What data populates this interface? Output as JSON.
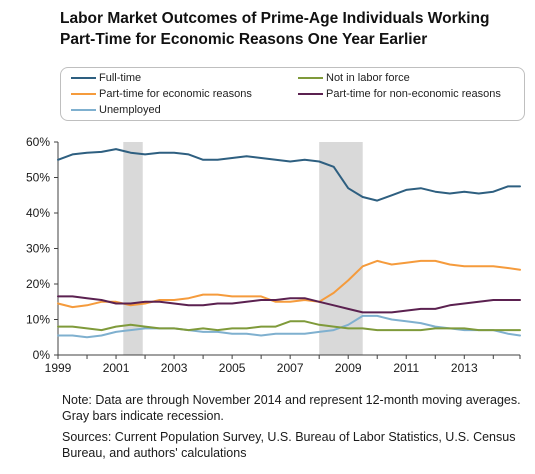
{
  "title_line1": "Labor Market Outcomes of Prime-Age Individuals Working",
  "title_line2": "Part-Time for Economic Reasons One Year Earlier",
  "note": "Note: Data are through November 2014 and represent 12-month moving averages. Gray bars indicate recession.",
  "sources": "Sources: Current Population Survey, U.S. Bureau of Labor Statistics, U.S. Census Bureau, and authors' calculations",
  "colors": {
    "full_time": "#2e5f80",
    "not_in_labor_force": "#7f9a3a",
    "pt_economic": "#f59b3c",
    "pt_noneconomic": "#5b2150",
    "unemployed": "#7fb0cf",
    "recession": "#d9d9d9",
    "axis": "#404040"
  },
  "chart_data": {
    "type": "line",
    "title": "Labor Market Outcomes of Prime-Age Individuals Working Part-Time for Economic Reasons One Year Earlier",
    "xlabel": "",
    "ylabel": "",
    "xlim": [
      1999,
      2014.92
    ],
    "ylim": [
      0,
      60
    ],
    "x_ticks": [
      1999,
      2001,
      2003,
      2005,
      2007,
      2009,
      2011,
      2013
    ],
    "x_tick_labels": [
      "1999",
      "2001",
      "2003",
      "2005",
      "2007",
      "2009",
      "2011",
      "2013"
    ],
    "y_ticks": [
      0,
      10,
      20,
      30,
      40,
      50,
      60
    ],
    "y_tick_labels": [
      "0%",
      "10%",
      "20%",
      "30%",
      "40%",
      "50%",
      "60%"
    ],
    "grid": false,
    "legend_position": "top",
    "recessions": [
      [
        2001.25,
        2001.92
      ],
      [
        2008.0,
        2009.5
      ]
    ],
    "x": [
      1999,
      1999.5,
      2000,
      2000.5,
      2001,
      2001.5,
      2002,
      2002.5,
      2003,
      2003.5,
      2004,
      2004.5,
      2005,
      2005.5,
      2006,
      2006.5,
      2007,
      2007.5,
      2008,
      2008.5,
      2009,
      2009.5,
      2010,
      2010.5,
      2011,
      2011.5,
      2012,
      2012.5,
      2013,
      2013.5,
      2014,
      2014.5,
      2014.92
    ],
    "series": [
      {
        "name": "Full-time",
        "key": "full_time",
        "values": [
          55.0,
          56.5,
          57.0,
          57.2,
          58.0,
          57.0,
          56.5,
          57.0,
          57.0,
          56.5,
          55.0,
          55.0,
          55.5,
          56.0,
          55.5,
          55.0,
          54.5,
          55.0,
          54.5,
          53.0,
          47.0,
          44.5,
          43.5,
          45.0,
          46.5,
          47.0,
          46.0,
          45.5,
          46.0,
          45.5,
          46.0,
          47.5,
          47.5
        ]
      },
      {
        "name": "Part-time for economic reasons",
        "key": "pt_economic",
        "values": [
          14.5,
          13.5,
          14.0,
          15.0,
          15.0,
          14.0,
          14.5,
          15.5,
          15.5,
          16.0,
          17.0,
          17.0,
          16.5,
          16.5,
          16.5,
          15.0,
          15.0,
          15.5,
          15.0,
          17.5,
          21.0,
          25.0,
          26.5,
          25.5,
          26.0,
          26.5,
          26.5,
          25.5,
          25.0,
          25.0,
          25.0,
          24.5,
          24.0
        ]
      },
      {
        "name": "Unemployed",
        "key": "unemployed",
        "values": [
          5.5,
          5.5,
          5.0,
          5.5,
          6.5,
          7.0,
          7.5,
          7.5,
          7.5,
          7.0,
          6.5,
          6.5,
          6.0,
          6.0,
          5.5,
          6.0,
          6.0,
          6.0,
          6.5,
          7.0,
          8.5,
          11.0,
          11.0,
          10.0,
          9.5,
          9.0,
          8.0,
          7.5,
          7.0,
          7.0,
          7.0,
          6.0,
          5.5
        ]
      },
      {
        "name": "Not in labor force",
        "key": "not_in_labor_force",
        "values": [
          8.0,
          8.0,
          7.5,
          7.0,
          8.0,
          8.5,
          8.0,
          7.5,
          7.5,
          7.0,
          7.5,
          7.0,
          7.5,
          7.5,
          8.0,
          8.0,
          9.5,
          9.5,
          8.5,
          8.0,
          7.5,
          7.5,
          7.0,
          7.0,
          7.0,
          7.0,
          7.5,
          7.5,
          7.5,
          7.0,
          7.0,
          7.0,
          7.0
        ]
      },
      {
        "name": "Part-time for non-economic reasons",
        "key": "pt_noneconomic",
        "values": [
          16.5,
          16.5,
          16.0,
          15.5,
          14.5,
          14.5,
          15.0,
          15.0,
          14.5,
          14.0,
          14.0,
          14.5,
          14.5,
          15.0,
          15.5,
          15.5,
          16.0,
          16.0,
          15.0,
          14.0,
          13.0,
          12.0,
          12.0,
          12.0,
          12.5,
          13.0,
          13.0,
          14.0,
          14.5,
          15.0,
          15.5,
          15.5,
          15.5
        ]
      }
    ]
  }
}
